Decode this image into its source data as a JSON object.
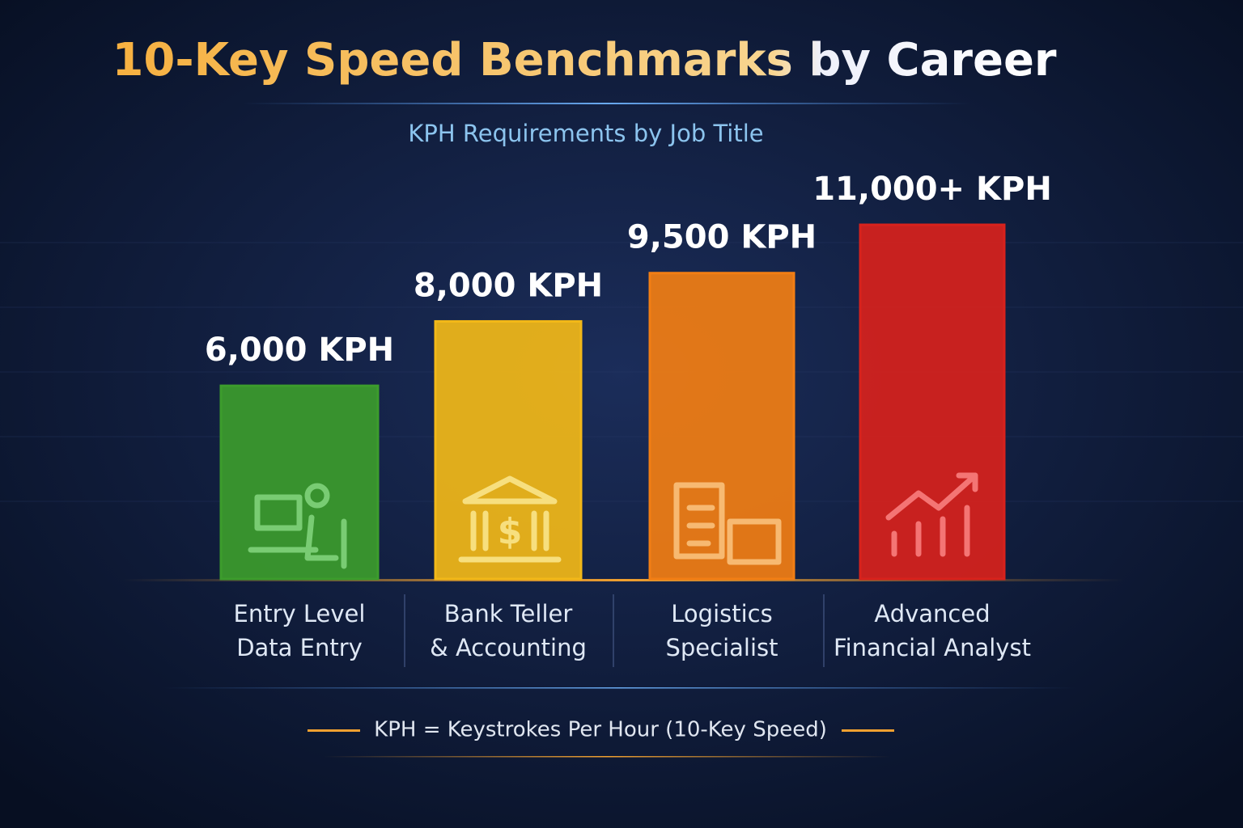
{
  "chart_data": {
    "type": "bar",
    "title": "10-Key Speed Benchmarks by Career",
    "subtitle": "KPH Requirements by Job Title",
    "categories": [
      "Entry Level\nData Entry",
      "Bank Teller\n& Accounting",
      "Logistics\nSpecialist",
      "Advanced\nFinancial Analyst"
    ],
    "values": [
      6000,
      8000,
      9500,
      11000
    ],
    "value_labels": [
      "6,000 KPH",
      "8,000 KPH",
      "9,500 KPH",
      "11,000+ KPH"
    ],
    "colors": [
      "#3c9c2c",
      "#f2b818",
      "#f27e14",
      "#d8221c"
    ],
    "footnote": "KPH = Keystrokes Per Hour (10-Key Speed)"
  }
}
